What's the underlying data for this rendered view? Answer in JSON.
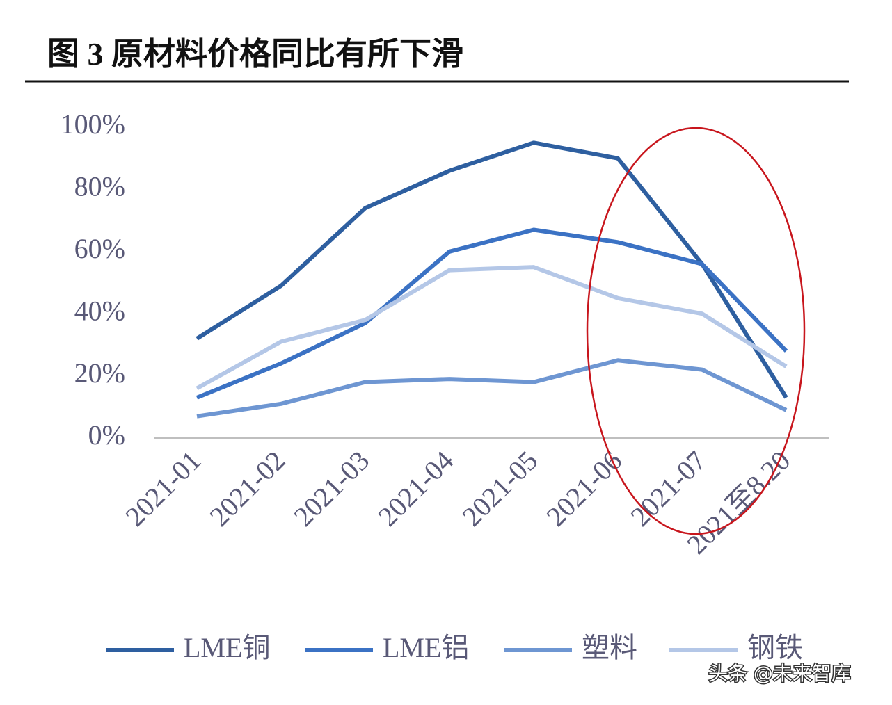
{
  "chart_data": {
    "type": "line",
    "title": "图 3 原材料价格同比有所下滑",
    "categories": [
      "2021-01",
      "2021-02",
      "2021-03",
      "2021-04",
      "2021-05",
      "2021-06",
      "2021-07",
      "2021至8.20"
    ],
    "series": [
      {
        "name": "LME铜",
        "color": "#2e5fa0",
        "values": [
          32,
          49,
          74,
          86,
          95,
          90,
          56,
          13
        ]
      },
      {
        "name": "LME铝",
        "color": "#3b72c4",
        "values": [
          13,
          24,
          37,
          60,
          67,
          63,
          56,
          28
        ]
      },
      {
        "name": "塑料",
        "color": "#6e96d2",
        "values": [
          7,
          11,
          18,
          19,
          18,
          25,
          22,
          9
        ]
      },
      {
        "name": "钢铁",
        "color": "#b4c7e7",
        "values": [
          16,
          31,
          38,
          54,
          55,
          45,
          40,
          23
        ]
      }
    ],
    "ylim": [
      0,
      100
    ],
    "yticks": [
      {
        "value": 0,
        "label": "0%"
      },
      {
        "value": 20,
        "label": "20%"
      },
      {
        "value": 40,
        "label": "40%"
      },
      {
        "value": 60,
        "label": "60%"
      },
      {
        "value": 80,
        "label": "80%"
      },
      {
        "value": 100,
        "label": "100%"
      }
    ],
    "watermark": "头条 @未来智库"
  }
}
